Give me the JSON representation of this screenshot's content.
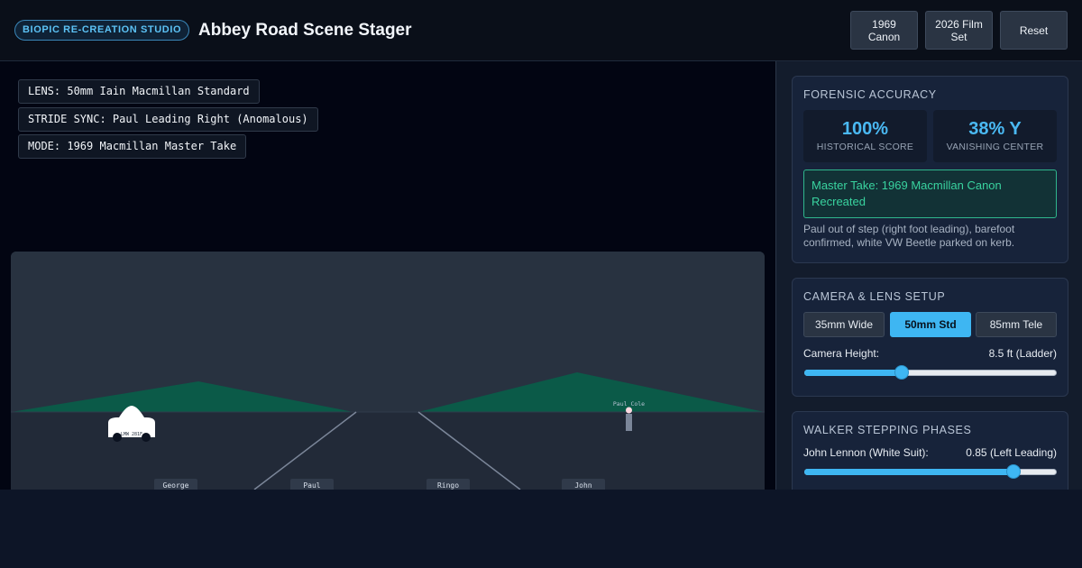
{
  "header": {
    "badge": "BIOPIC RE-CREATION STUDIO",
    "title": "Abbey Road Scene Stager",
    "buttons": [
      {
        "line1": "1969",
        "line2": "Canon"
      },
      {
        "line1": "2026 Film",
        "line2": "Set"
      },
      {
        "line1": "Reset",
        "line2": ""
      }
    ]
  },
  "hud": {
    "lens": "LENS: 50mm Iain Macmillan Standard",
    "stride": "STRIDE SYNC: Paul Leading Right (Anomalous)",
    "mode": "MODE: 1969 Macmillan Master Take"
  },
  "scene": {
    "car_plate": "LMW 281F",
    "streetlamp_label": "Paul Cole",
    "walkers": [
      "George",
      "Paul",
      "Ringo",
      "John"
    ],
    "colors": {
      "sky": "#283240",
      "trees": "#0b5a48",
      "road": "#222a38",
      "car": "#ffffff",
      "stripe": "#7b8699"
    }
  },
  "forensic": {
    "title": "FORENSIC ACCURACY",
    "score_value": "100%",
    "score_label": "HISTORICAL SCORE",
    "vanish_value": "38% Y",
    "vanish_label": "VANISHING CENTER",
    "master": "Master Take: 1969 Macmillan Canon Recreated",
    "note": "Paul out of step (right foot leading), barefoot confirmed, white VW Beetle parked on kerb."
  },
  "camera": {
    "title": "CAMERA & LENS SETUP",
    "lenses": [
      "35mm Wide",
      "50mm Std",
      "85mm Tele"
    ],
    "active_lens": "50mm Std",
    "height_label": "Camera Height:",
    "height_value": "8.5 ft (Ladder)",
    "height_fraction": 0.38
  },
  "walkers_panel": {
    "title": "WALKER STEPPING PHASES",
    "john_label": "John Lennon (White Suit):",
    "john_value": "0.85 (Left Leading)",
    "john_fraction": 0.85
  },
  "colors": {
    "accent": "#3eb6f2",
    "success": "#39d39f"
  }
}
